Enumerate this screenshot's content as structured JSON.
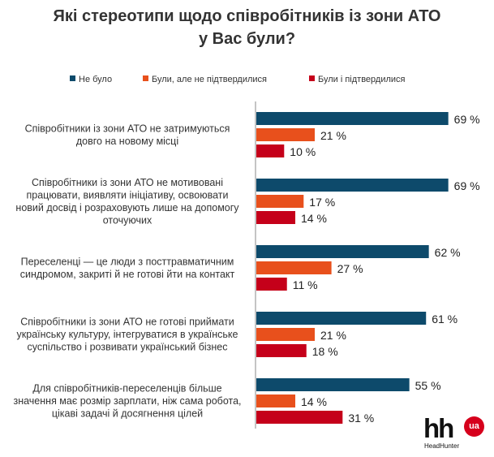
{
  "chart_data": {
    "type": "bar",
    "orientation": "horizontal",
    "title": "Які стереотипи щодо співробітників із зони АТО у Вас були?",
    "title_lines": [
      "Які стереотипи щодо співробітників із зони АТО",
      "у Вас були?"
    ],
    "legend_position": "top",
    "xlim": [
      0,
      100
    ],
    "grid": false,
    "categories": [
      [
        "Співробітники із зони АТО не затримуються",
        "довго на новому місці"
      ],
      [
        "Співробітники із зони АТО не мотивовані",
        "працювати, виявляти ініціативу, освоювати",
        "новий досвід і розраховують лише на допомогу",
        "оточуючих"
      ],
      [
        "Переселенці — це люди з посттравматичним",
        "синдромом, закриті й не готові йти на контакт"
      ],
      [
        "Співробітники із зони АТО не готові приймати",
        "українську культуру, інтегруватися в українське",
        "суспільство і розвивати український бізнес"
      ],
      [
        "Для співробітників-переселенців більше",
        "значення має розмір зарплати, ніж сама робота,",
        "цікаві задачі й досягнення цілей"
      ]
    ],
    "series": [
      {
        "name": "Не було",
        "color": "#0d4a6b",
        "values": [
          69,
          69,
          62,
          61,
          55
        ]
      },
      {
        "name": "Були, але не підтвердилися",
        "color": "#e8501c",
        "values": [
          21,
          17,
          27,
          21,
          14
        ]
      },
      {
        "name": "Були і підтвердилися",
        "color": "#c5001a",
        "values": [
          10,
          14,
          11,
          18,
          31
        ]
      }
    ],
    "value_suffix": " %"
  },
  "logo": {
    "text": "hh",
    "badge": "ua",
    "subtitle": "HeadHunter"
  }
}
